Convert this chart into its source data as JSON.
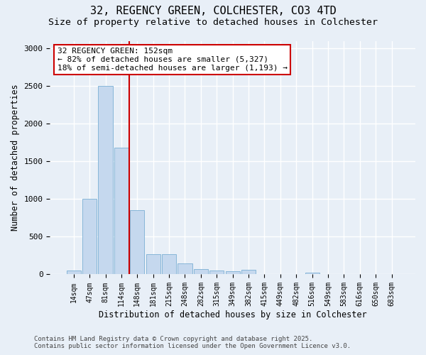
{
  "title_line1": "32, REGENCY GREEN, COLCHESTER, CO3 4TD",
  "title_line2": "Size of property relative to detached houses in Colchester",
  "xlabel": "Distribution of detached houses by size in Colchester",
  "ylabel": "Number of detached properties",
  "categories": [
    "14sqm",
    "47sqm",
    "81sqm",
    "114sqm",
    "148sqm",
    "181sqm",
    "215sqm",
    "248sqm",
    "282sqm",
    "315sqm",
    "349sqm",
    "382sqm",
    "415sqm",
    "449sqm",
    "482sqm",
    "516sqm",
    "549sqm",
    "583sqm",
    "616sqm",
    "650sqm",
    "683sqm"
  ],
  "values": [
    50,
    1000,
    2500,
    1680,
    850,
    270,
    270,
    150,
    70,
    50,
    45,
    65,
    0,
    0,
    0,
    28,
    0,
    0,
    0,
    0,
    0
  ],
  "bar_color": "#c5d8ee",
  "bar_edge_color": "#7aafd4",
  "bg_color": "#e8eff7",
  "grid_color": "#ffffff",
  "annotation_text": "32 REGENCY GREEN: 152sqm\n← 82% of detached houses are smaller (5,327)\n18% of semi-detached houses are larger (1,193) →",
  "annotation_edge_color": "#cc0000",
  "vline_color": "#cc0000",
  "vline_x": 3.5,
  "ylim": [
    0,
    3100
  ],
  "yticks": [
    0,
    500,
    1000,
    1500,
    2000,
    2500,
    3000
  ],
  "footer": "Contains HM Land Registry data © Crown copyright and database right 2025.\nContains public sector information licensed under the Open Government Licence v3.0."
}
